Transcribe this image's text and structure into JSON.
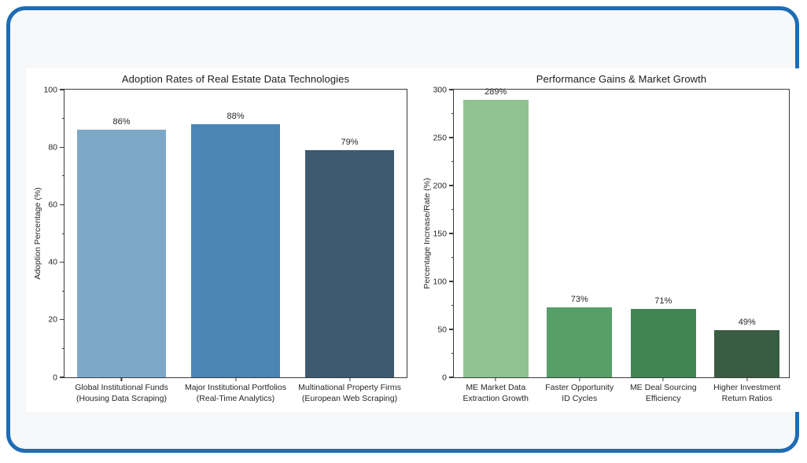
{
  "frame": {
    "border_color": "#1f6cb5",
    "panel_bg": "#f6f8fa",
    "figure_bg": "#ffffff",
    "axis_color": "#3a3a3a",
    "text_color": "#262626"
  },
  "chart_data": [
    {
      "type": "bar",
      "title": "Adoption Rates of Real Estate Data Technologies",
      "xlabel": "",
      "ylabel": "Adoption Percentage (%)",
      "ylim": [
        0,
        100
      ],
      "yticks": [
        0,
        20,
        40,
        60,
        80,
        100
      ],
      "ytick_step": 20,
      "grid": false,
      "legend_position": "none",
      "categories": [
        "Global Institutional Funds\n(Housing Data Scraping)",
        "Major Institutional Portfolios\n(Real-Time Analytics)",
        "Multinational Property Firms\n(European Web Scraping)"
      ],
      "values": [
        86,
        88,
        79
      ],
      "value_labels": [
        "86%",
        "88%",
        "79%"
      ],
      "bar_colors": [
        "#7da8c8",
        "#4a85b5",
        "#3d5a71"
      ]
    },
    {
      "type": "bar",
      "title": "Performance Gains & Market Growth",
      "xlabel": "",
      "ylabel": "Percentage Increase/Rate (%)",
      "ylim": [
        0,
        300
      ],
      "yticks": [
        0,
        50,
        100,
        150,
        200,
        250,
        300
      ],
      "ytick_step": 50,
      "grid": false,
      "legend_position": "none",
      "categories": [
        "ME Market Data\nExtraction Growth",
        "Faster Opportunity\nID Cycles",
        "ME Deal Sourcing\nEfficiency",
        "Higher Investment\nReturn Ratios"
      ],
      "values": [
        289,
        73,
        71,
        49
      ],
      "value_labels": [
        "289%",
        "73%",
        "71%",
        "49%"
      ],
      "bar_colors": [
        "#90c291",
        "#579f68",
        "#418553",
        "#3a5c42"
      ]
    }
  ]
}
